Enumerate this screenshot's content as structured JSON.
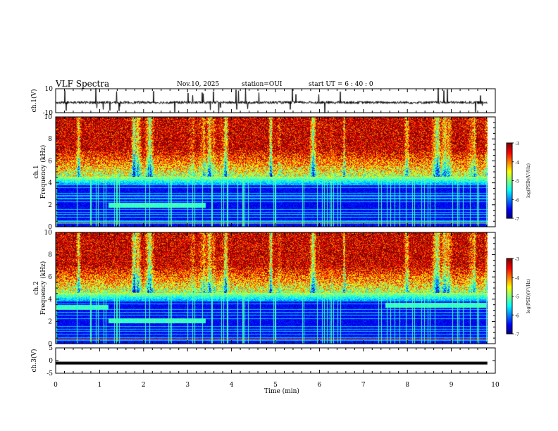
{
  "header": {
    "title": "VLF Spectra",
    "date": "Nov.10, 2025",
    "station": "station=OUI",
    "start": "start  UT =  6 : 40 : 0"
  },
  "chart_data": [
    {
      "type": "line",
      "name": "ch1-waveform",
      "ylabel": "ch.1(V)",
      "ylim": [
        -10,
        10
      ],
      "y_ticks": [
        "10",
        "-10"
      ],
      "xlim": [
        0,
        10
      ]
    },
    {
      "type": "heatmap",
      "name": "ch1-spectrogram",
      "ylabel": "ch.1\nFrequency (kHz)",
      "ylim": [
        0,
        10
      ],
      "y_ticks": [
        "0",
        "2",
        "4",
        "6",
        "8",
        "10"
      ],
      "xlim": [
        0,
        10
      ],
      "colorbar": {
        "label": "log(PSD)(V²/Hz)",
        "range": [
          -7,
          -3
        ],
        "ticks": [
          "-3",
          "-4",
          "-5",
          "-6",
          "-7"
        ]
      },
      "features": [
        {
          "type": "emission-band",
          "freq_khz": 2.0,
          "t_start_min": 1.2,
          "t_end_min": 3.4
        }
      ]
    },
    {
      "type": "heatmap",
      "name": "ch2-spectrogram",
      "ylabel": "ch.2\nFrequency (kHz)",
      "ylim": [
        0,
        10
      ],
      "y_ticks": [
        "0",
        "2",
        "4",
        "6",
        "8",
        "10"
      ],
      "xlim": [
        0,
        10
      ],
      "colorbar": {
        "label": "log(PSD)(V²/Hz)",
        "range": [
          -7,
          -3
        ],
        "ticks": [
          "-3",
          "-4",
          "-5",
          "-6",
          "-7"
        ]
      },
      "features": [
        {
          "type": "emission-band",
          "freq_khz": 3.3,
          "t_start_min": 0.0,
          "t_end_min": 1.2
        },
        {
          "type": "emission-band",
          "freq_khz": 2.1,
          "t_start_min": 1.2,
          "t_end_min": 3.4
        },
        {
          "type": "emission-band",
          "freq_khz": 3.5,
          "t_start_min": 7.5,
          "t_end_min": 9.8
        }
      ]
    },
    {
      "type": "line",
      "name": "ch3-waveform",
      "ylabel": "ch.3(V)",
      "ylim": [
        -5,
        5
      ],
      "y_ticks": [
        "5",
        "0",
        "-5"
      ],
      "constant_value": -1,
      "xlim": [
        0,
        10
      ]
    }
  ],
  "xaxis": {
    "label": "Time  (min)",
    "range": [
      0,
      10
    ],
    "ticks": [
      "0",
      "1",
      "2",
      "3",
      "4",
      "5",
      "6",
      "7",
      "8",
      "9",
      "10"
    ]
  }
}
